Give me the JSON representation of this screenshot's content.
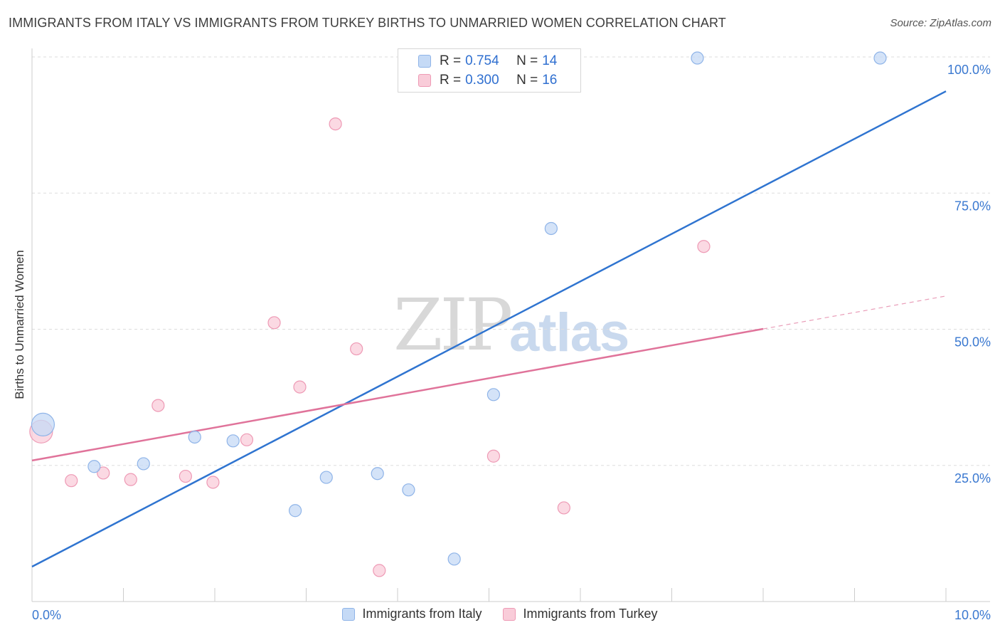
{
  "header": {
    "title": "IMMIGRANTS FROM ITALY VS IMMIGRANTS FROM TURKEY BIRTHS TO UNMARRIED WOMEN CORRELATION CHART",
    "source": "Source: ZipAtlas.com"
  },
  "watermark": {
    "zip": "ZIP",
    "atlas": "atlas"
  },
  "legend": {
    "italy": {
      "r_label": "R = ",
      "r_value": "0.754",
      "n_label": "N = ",
      "n_value": "14"
    },
    "turkey": {
      "r_label": "R = ",
      "r_value": "0.300",
      "n_label": "N = ",
      "n_value": "16"
    }
  },
  "colors": {
    "italy_fill": "#c5daf6",
    "italy_stroke": "#8fb4e8",
    "italy_line": "#2f74d0",
    "turkey_fill": "#f9ccd9",
    "turkey_stroke": "#ee9ab5",
    "turkey_line": "#e0739a",
    "grid": "#dddddd",
    "tick_label": "#3a78d0"
  },
  "chart_data": {
    "type": "scatter",
    "title": "IMMIGRANTS FROM ITALY VS IMMIGRANTS FROM TURKEY BIRTHS TO UNMARRIED WOMEN CORRELATION CHART",
    "xlabel": "",
    "ylabel": "Births to Unmarried Women",
    "xlim": [
      0,
      10
    ],
    "ylim": [
      0,
      100
    ],
    "x_tick_labels": [
      "0.0%",
      "10.0%"
    ],
    "y_ticks": [
      25,
      50,
      75,
      100
    ],
    "y_tick_labels": [
      "25.0%",
      "50.0%",
      "75.0%",
      "100.0%"
    ],
    "grid": true,
    "legend_position": "bottom",
    "series": [
      {
        "name": "Immigrants from Italy",
        "color": "#2f74d0",
        "points": [
          {
            "x": 0.12,
            "y": 32.5,
            "size": "large"
          },
          {
            "x": 0.68,
            "y": 24.8
          },
          {
            "x": 1.22,
            "y": 25.3
          },
          {
            "x": 1.78,
            "y": 30.2
          },
          {
            "x": 2.2,
            "y": 29.5
          },
          {
            "x": 2.88,
            "y": 16.7
          },
          {
            "x": 3.22,
            "y": 22.8
          },
          {
            "x": 3.78,
            "y": 23.5
          },
          {
            "x": 4.12,
            "y": 20.5
          },
          {
            "x": 4.62,
            "y": 7.8
          },
          {
            "x": 5.05,
            "y": 38.0
          },
          {
            "x": 5.68,
            "y": 68.5
          },
          {
            "x": 7.28,
            "y": 99.8
          },
          {
            "x": 9.28,
            "y": 99.8
          }
        ],
        "trend": {
          "x": [
            0,
            10
          ],
          "y": [
            6.4,
            93.7
          ],
          "dashed_from": null
        }
      },
      {
        "name": "Immigrants from Turkey",
        "color": "#e0739a",
        "points": [
          {
            "x": 0.1,
            "y": 31.2,
            "size": "large"
          },
          {
            "x": 0.43,
            "y": 22.2
          },
          {
            "x": 0.78,
            "y": 23.6
          },
          {
            "x": 1.08,
            "y": 22.4
          },
          {
            "x": 1.38,
            "y": 36.0
          },
          {
            "x": 1.68,
            "y": 23.0
          },
          {
            "x": 1.98,
            "y": 21.9
          },
          {
            "x": 2.35,
            "y": 29.7
          },
          {
            "x": 2.65,
            "y": 51.2
          },
          {
            "x": 2.93,
            "y": 39.4
          },
          {
            "x": 3.32,
            "y": 87.7
          },
          {
            "x": 3.55,
            "y": 46.4
          },
          {
            "x": 3.8,
            "y": 5.7
          },
          {
            "x": 5.05,
            "y": 26.7
          },
          {
            "x": 5.82,
            "y": 17.2
          },
          {
            "x": 7.35,
            "y": 65.2
          }
        ],
        "trend": {
          "x": [
            0,
            10
          ],
          "y": [
            25.9,
            56.1
          ],
          "dashed_from": 8.0
        }
      }
    ]
  },
  "bottom_legend": {
    "italy_label": "Immigrants from Italy",
    "turkey_label": "Immigrants from Turkey"
  }
}
